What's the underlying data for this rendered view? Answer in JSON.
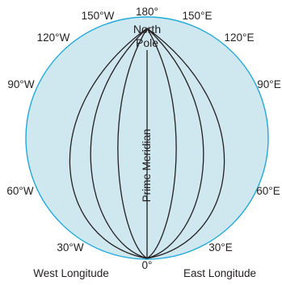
{
  "diagram": {
    "colors": {
      "globe_fill": "#cfe7ef",
      "globe_stroke": "#1fa9dc",
      "meridian_stroke": "#231f20",
      "text": "#231f20"
    },
    "pole_label": {
      "line1": "North",
      "line2": "Pole"
    },
    "prime_meridian_label": "Prime Meridian",
    "longitude_labels": {
      "top_180": "180°",
      "w150": "150°W",
      "e150": "150°E",
      "w120": "120°W",
      "e120": "120°E",
      "w90": "90°W",
      "e90": "90°E",
      "w60": "60°W",
      "e60": "60°E",
      "w30": "30°W",
      "e30": "30°E",
      "bottom_0": "0°"
    },
    "hemisphere_labels": {
      "west": "West Longitude",
      "east": "East Longitude"
    }
  }
}
